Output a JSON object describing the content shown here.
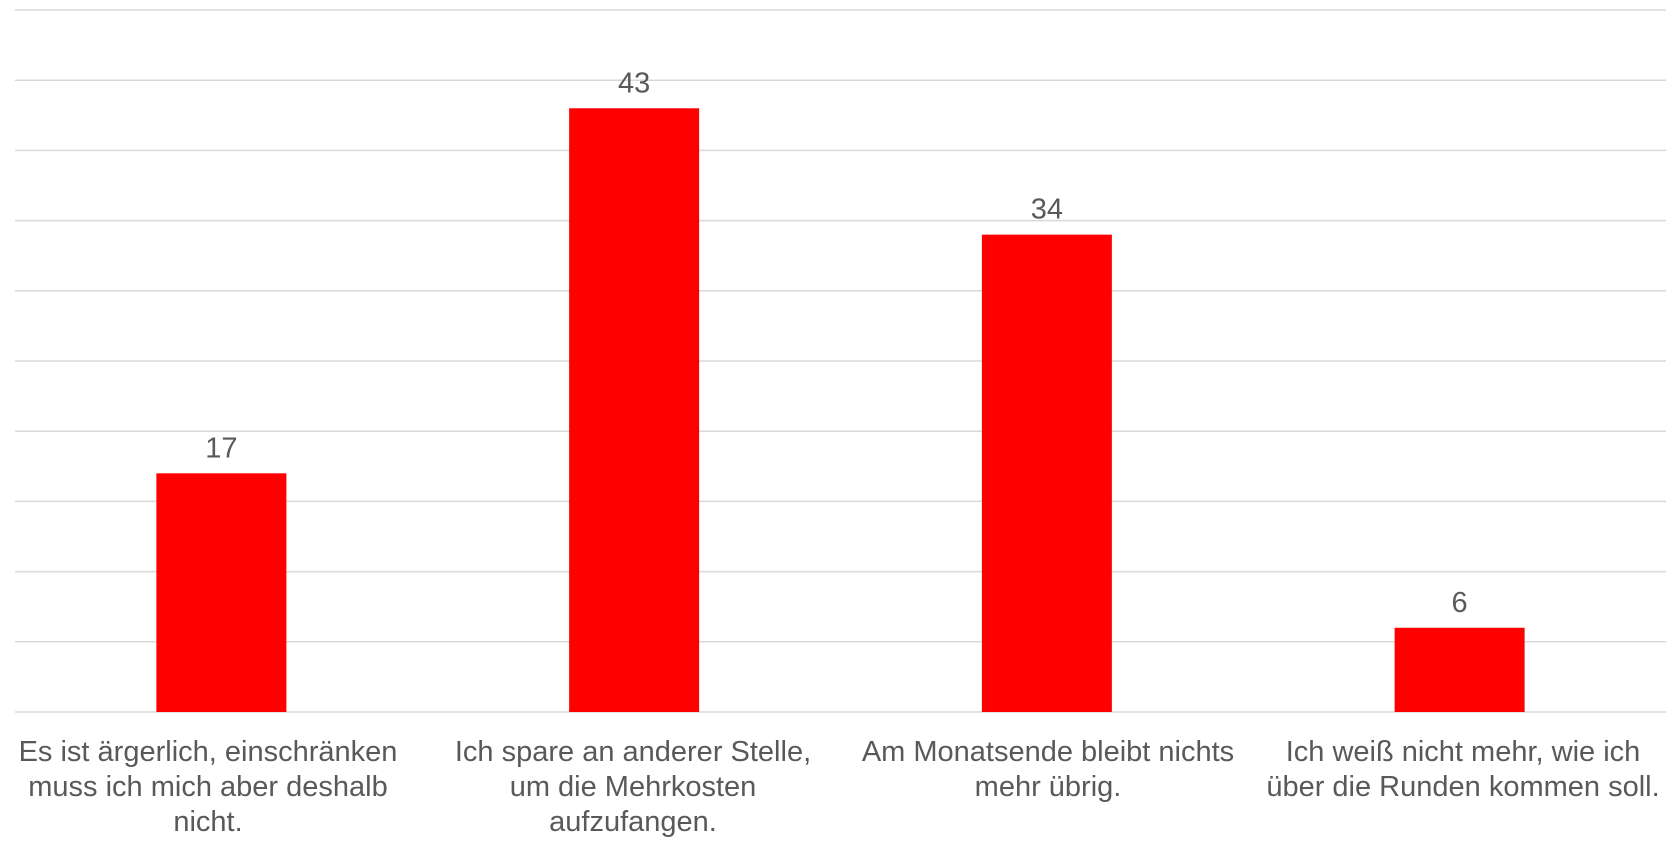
{
  "chart_data": {
    "type": "bar",
    "categories": [
      "Es ist ärgerlich, einschränken muss ich mich aber deshalb nicht.",
      "Ich spare an anderer Stelle, um die Mehrkosten aufzufangen.",
      "Am Monatsende bleibt nichts mehr übrig.",
      "Ich weiß nicht mehr, wie ich über die Runden kommen soll."
    ],
    "values": [
      17,
      43,
      34,
      6
    ],
    "data_labels": [
      "17",
      "43",
      "34",
      "6"
    ],
    "ylim": [
      0,
      50
    ],
    "y_gridline_step": 5,
    "grid": true,
    "legend": "none",
    "colors": {
      "bar": "#ff0000",
      "grid": "#d9d9d9",
      "text": "#595959"
    }
  }
}
